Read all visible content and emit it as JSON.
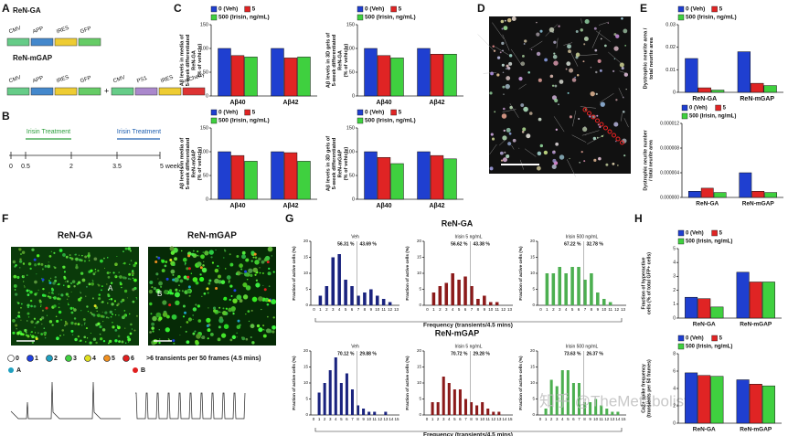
{
  "panel_labels": [
    "A",
    "B",
    "C",
    "D",
    "E",
    "F",
    "G",
    "H"
  ],
  "panel_a": {
    "line1_title": "ReN-GA",
    "line1_boxes": [
      "CMV",
      "APP",
      "IRES",
      "GFP"
    ],
    "line2_title": "ReN-mGAP",
    "line2_boxes": [
      "CMV",
      "APP",
      "IRES",
      "GFP"
    ],
    "plus": "+",
    "line2b_boxes": [
      "CMV",
      "PS1",
      "IRES",
      "mCherry"
    ]
  },
  "panel_b": {
    "treatments": [
      "Irisin Treatment",
      "Irisin Treatment"
    ],
    "ticks": [
      "0",
      "0.5",
      "2",
      "3.5",
      "5 weeks"
    ]
  },
  "charts_c": [
    {
      "type": "bar",
      "ylabel": [
        "Aβ levels in media of",
        "5-week differentiated",
        "ReN-GA",
        "(% of vehicle)"
      ],
      "categories": [
        "Aβ40",
        "Aβ42"
      ],
      "series": [
        {
          "name": "0 (Veh)",
          "color": "#1f3fd0",
          "values": [
            100,
            100
          ]
        },
        {
          "name": "5",
          "color": "#e02424",
          "values": [
            85,
            80
          ]
        },
        {
          "name": "500 (Irisin, ng/mL)",
          "color": "#3fd03f",
          "values": [
            82,
            82
          ]
        }
      ],
      "ylim": [
        0,
        150
      ],
      "yticks": [
        0,
        50,
        100,
        150
      ]
    },
    {
      "type": "bar",
      "ylabel": [
        "Aβ levels in 3D gels of",
        "5-week differentiated",
        "ReN-GA",
        "(% of vehicle)"
      ],
      "categories": [
        "Aβ40",
        "Aβ42"
      ],
      "series": [
        {
          "name": "0 (Veh)",
          "color": "#1f3fd0",
          "values": [
            100,
            100
          ]
        },
        {
          "name": "5",
          "color": "#e02424",
          "values": [
            85,
            88
          ]
        },
        {
          "name": "500 (Irisin, ng/mL)",
          "color": "#3fd03f",
          "values": [
            80,
            88
          ]
        }
      ],
      "ylim": [
        0,
        150
      ],
      "yticks": [
        0,
        50,
        100,
        150
      ]
    },
    {
      "type": "bar",
      "ylabel": [
        "Aβ levels in media of",
        "5-week differentiated",
        "ReN-mGAP",
        "(% of vehicle)"
      ],
      "categories": [
        "Aβ40",
        "Aβ42"
      ],
      "series": [
        {
          "name": "0 (Veh)",
          "color": "#1f3fd0",
          "values": [
            100,
            100
          ]
        },
        {
          "name": "5",
          "color": "#e02424",
          "values": [
            92,
            98
          ]
        },
        {
          "name": "500 (Irisin, ng/mL)",
          "color": "#3fd03f",
          "values": [
            80,
            80
          ]
        }
      ],
      "ylim": [
        0,
        150
      ],
      "yticks": [
        0,
        50,
        100,
        150
      ]
    },
    {
      "type": "bar",
      "ylabel": [
        "Aβ levels in 3D gels of",
        "5-week differentiated",
        "ReN-mGAP",
        "(% of vehicle)"
      ],
      "categories": [
        "Aβ40",
        "Aβ42"
      ],
      "series": [
        {
          "name": "0 (Veh)",
          "color": "#1f3fd0",
          "values": [
            100,
            100
          ]
        },
        {
          "name": "5",
          "color": "#e02424",
          "values": [
            88,
            92
          ]
        },
        {
          "name": "500 (Irisin, ng/mL)",
          "color": "#3fd03f",
          "values": [
            75,
            85
          ]
        }
      ],
      "ylim": [
        0,
        150
      ],
      "yticks": [
        0,
        50,
        100,
        150
      ]
    }
  ],
  "charts_e": [
    {
      "type": "bar",
      "ylabel": [
        "Dystrophic neurite area /",
        "total neurite area"
      ],
      "categories": [
        "ReN-GA",
        "ReN-mGAP"
      ],
      "series": [
        {
          "name": "0 (Veh)",
          "color": "#1f3fd0",
          "values": [
            0.015,
            0.018
          ]
        },
        {
          "name": "5",
          "color": "#e02424",
          "values": [
            0.002,
            0.004
          ]
        },
        {
          "name": "500 (Irisin, ng/mL)",
          "color": "#3fd03f",
          "values": [
            0.001,
            0.003
          ]
        }
      ],
      "ylim": [
        0,
        0.03
      ],
      "yticks": [
        0,
        0.01,
        0.02,
        0.03
      ]
    },
    {
      "type": "bar",
      "ylabel": [
        "Dystrophic neurite number",
        "/ total neurite area"
      ],
      "categories": [
        "ReN-GA",
        "ReN-mGAP"
      ],
      "series": [
        {
          "name": "0 (Veh)",
          "color": "#1f3fd0",
          "values": [
            1e-06,
            4e-06
          ]
        },
        {
          "name": "5",
          "color": "#e02424",
          "values": [
            1.5e-06,
            1e-06
          ]
        },
        {
          "name": "500 (Irisin, ng/mL)",
          "color": "#3fd03f",
          "values": [
            8e-07,
            8e-07
          ]
        }
      ],
      "ylim": [
        0,
        1.2e-05
      ],
      "yticks": [
        {
          "value": 0,
          "label": "0.000000"
        },
        {
          "value": 4e-06,
          "label": "0.000004"
        },
        {
          "value": 8e-06,
          "label": "0.000008"
        },
        {
          "value": 1.2e-05,
          "label": "0.000012"
        }
      ]
    }
  ],
  "panel_f": {
    "titles": [
      "ReN-GA",
      "ReN-mGAP"
    ],
    "legend": [
      "0",
      "1",
      "2",
      "3",
      "4",
      "5",
      "6"
    ],
    "legend_tail": ">6 transients per 50 frames (4.5 mins)",
    "cells": [
      "A",
      "B"
    ]
  },
  "panel_g": {
    "xlabel": "Frequency (transients/4.5 mins)",
    "watermark": "知乎 @TheMetabolist",
    "rows": [
      {
        "title": "ReN-GA",
        "charts": [
          {
            "type": "bar",
            "title": "Veh",
            "annotations": [
              "56.31 %",
              "43.69 %"
            ],
            "ylabel": [
              "Fraction of active cells (%)"
            ],
            "categories": [
              0,
              1,
              2,
              3,
              4,
              5,
              6,
              7,
              8,
              9,
              10,
              11,
              12,
              13
            ],
            "series": [
              {
                "color": "#1a237e",
                "values": [
                  0,
                  3,
                  6,
                  15,
                  16,
                  8,
                  6,
                  3,
                  4,
                  5,
                  3,
                  2,
                  1,
                  0
                ]
              }
            ],
            "ylim": [
              0,
              20
            ],
            "yticks": [
              0,
              5,
              10,
              15,
              20
            ]
          },
          {
            "type": "bar",
            "title": "Irisin 5 ng/mL",
            "annotations": [
              "56.62 %",
              "43.38 %"
            ],
            "ylabel": [
              "Fraction of active cells (%)"
            ],
            "categories": [
              0,
              1,
              2,
              3,
              4,
              5,
              6,
              7,
              8,
              9,
              10,
              11,
              12,
              13
            ],
            "series": [
              {
                "color": "#8b1a1a",
                "values": [
                  0,
                  4,
                  6,
                  7,
                  10,
                  8,
                  9,
                  6,
                  2,
                  3,
                  1,
                  1,
                  0,
                  0
                ]
              }
            ],
            "ylim": [
              0,
              20
            ],
            "yticks": [
              0,
              5,
              10,
              15,
              20
            ]
          },
          {
            "type": "bar",
            "title": "Irisin 500 ng/mL",
            "annotations": [
              "67.22 %",
              "32.78 %"
            ],
            "ylabel": [
              "Fraction of active cells (%)"
            ],
            "categories": [
              0,
              1,
              2,
              3,
              4,
              5,
              6,
              7,
              8,
              9,
              10,
              11,
              12,
              13
            ],
            "series": [
              {
                "color": "#4caf50",
                "values": [
                  0,
                  10,
                  10,
                  12,
                  10,
                  12,
                  12,
                  8,
                  10,
                  4,
                  2,
                  1,
                  0,
                  0
                ]
              }
            ],
            "ylim": [
              0,
              20
            ],
            "yticks": [
              0,
              5,
              10,
              15,
              20
            ]
          }
        ]
      },
      {
        "title": "ReN-mGAP",
        "charts": [
          {
            "type": "bar",
            "title": "Veh",
            "annotations": [
              "70.12 %",
              "29.88 %"
            ],
            "ylabel": [
              "Fraction of active cells (%)"
            ],
            "categories": [
              0,
              1,
              2,
              3,
              4,
              5,
              6,
              7,
              8,
              9,
              10,
              11,
              12,
              13,
              14,
              15
            ],
            "series": [
              {
                "color": "#1a237e",
                "values": [
                  0,
                  7,
                  10,
                  14,
                  18,
                  10,
                  13,
                  8,
                  3,
                  2,
                  1,
                  1,
                  0,
                  1,
                  0,
                  0
                ]
              }
            ],
            "ylim": [
              0,
              20
            ],
            "yticks": [
              0,
              5,
              10,
              15,
              20
            ]
          },
          {
            "type": "bar",
            "title": "Irisin 5 ng/mL",
            "annotations": [
              "70.72 %",
              "29.28 %"
            ],
            "ylabel": [
              "Fraction of active cells (%)"
            ],
            "categories": [
              0,
              1,
              2,
              3,
              4,
              5,
              6,
              7,
              8,
              9,
              10,
              11,
              12,
              13,
              14,
              15
            ],
            "series": [
              {
                "color": "#8b1a1a",
                "values": [
                  0,
                  4,
                  4,
                  12,
                  10,
                  8,
                  8,
                  5,
                  4,
                  3,
                  4,
                  2,
                  1,
                  1,
                  0,
                  0
                ]
              }
            ],
            "ylim": [
              0,
              20
            ],
            "yticks": [
              0,
              5,
              10,
              15,
              20
            ]
          },
          {
            "type": "bar",
            "title": "Irisin 500 ng/mL",
            "annotations": [
              "73.63 %",
              "26.37 %"
            ],
            "ylabel": [
              "Fraction of active cells (%)"
            ],
            "categories": [
              0,
              1,
              2,
              3,
              4,
              5,
              6,
              7,
              8,
              9,
              10,
              11,
              12,
              13,
              14,
              15
            ],
            "series": [
              {
                "color": "#4caf50",
                "values": [
                  0,
                  2,
                  11,
                  9,
                  14,
                  14,
                  10,
                  10,
                  4,
                  4,
                  5,
                  3,
                  2,
                  1,
                  1,
                  0
                ]
              }
            ],
            "ylim": [
              0,
              20
            ],
            "yticks": [
              0,
              5,
              10,
              15,
              20
            ]
          }
        ]
      }
    ]
  },
  "charts_h": [
    {
      "type": "bar",
      "ylabel": [
        "Fraction of hyperactive",
        "cells (% of total GFP+ cells)"
      ],
      "categories": [
        "ReN-GA",
        "ReN-mGAP"
      ],
      "series": [
        {
          "name": "0 (Veh)",
          "color": "#1f3fd0",
          "values": [
            1.5,
            3.3
          ]
        },
        {
          "name": "5",
          "color": "#e02424",
          "values": [
            1.4,
            2.6
          ]
        },
        {
          "name": "500 (Irisin, ng/mL)",
          "color": "#3fd03f",
          "values": [
            0.8,
            2.6
          ]
        }
      ],
      "ylim": [
        0,
        5
      ],
      "yticks": [
        0,
        1,
        2,
        3,
        4,
        5
      ]
    },
    {
      "type": "bar",
      "ylabel": [
        "Ca2+ spike frequency",
        "(transients per 50 frames)"
      ],
      "categories": [
        "ReN-GA",
        "ReN-mGAP"
      ],
      "series": [
        {
          "name": "0 (Veh)",
          "color": "#1f3fd0",
          "values": [
            5.8,
            5.0
          ]
        },
        {
          "name": "5",
          "color": "#e02424",
          "values": [
            5.5,
            4.5
          ]
        },
        {
          "name": "500 (Irisin, ng/mL)",
          "color": "#3fd03f",
          "values": [
            5.4,
            4.3
          ]
        }
      ],
      "ylim": [
        0,
        8
      ],
      "yticks": [
        0,
        2,
        4,
        6,
        8
      ]
    }
  ]
}
